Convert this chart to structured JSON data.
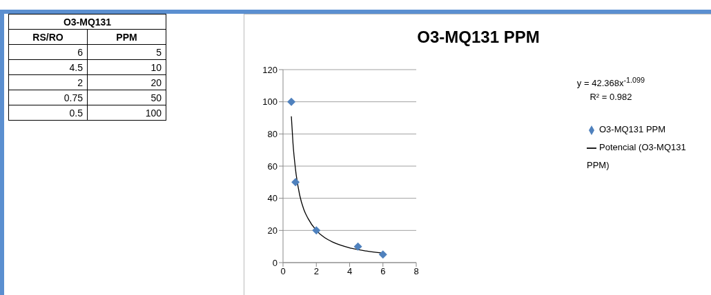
{
  "chart_data": [
    {
      "type": "other",
      "title": "O3-MQ131",
      "annotations": [
        "RS/RO",
        "PPM",
        "6",
        "5",
        "4.5",
        "10",
        "2",
        "20",
        "0.75",
        "50",
        "0.5",
        "100"
      ]
    },
    {
      "type": "scatter",
      "title": "O3-MQ131 PPM",
      "annotations": [
        "y = 42.368x$^{-1.099}$",
        "R² = 0.982"
      ],
      "series": [
        {
          "name": "O3-MQ131 PPM",
          "type": "scatter",
          "color": "#4f81bd",
          "marker": "diamond",
          "x": [
            6,
            4.5,
            2,
            0.75,
            0.5
          ],
          "values": [
            5,
            10,
            20,
            50,
            100
          ]
        },
        {
          "name": "Potencial (O3-MQ131 PPM)",
          "type": "line",
          "color": "#000000",
          "x": [
            0.5,
            0.6,
            0.75,
            1,
            1.25,
            1.5,
            2,
            2.5,
            3,
            4,
            5,
            6
          ],
          "values": [
            91,
            74,
            58,
            42,
            33,
            27.5,
            20,
            15.5,
            12.7,
            9.2,
            7.2,
            5.9
          ]
        }
      ],
      "xlim": [
        0,
        8
      ],
      "xticks": [
        0,
        2,
        4,
        6,
        8
      ],
      "ylim": [
        0,
        120
      ],
      "yticks": [
        0,
        20,
        40,
        60,
        80,
        100,
        120
      ],
      "grid": "y",
      "legend": "right"
    }
  ]
}
